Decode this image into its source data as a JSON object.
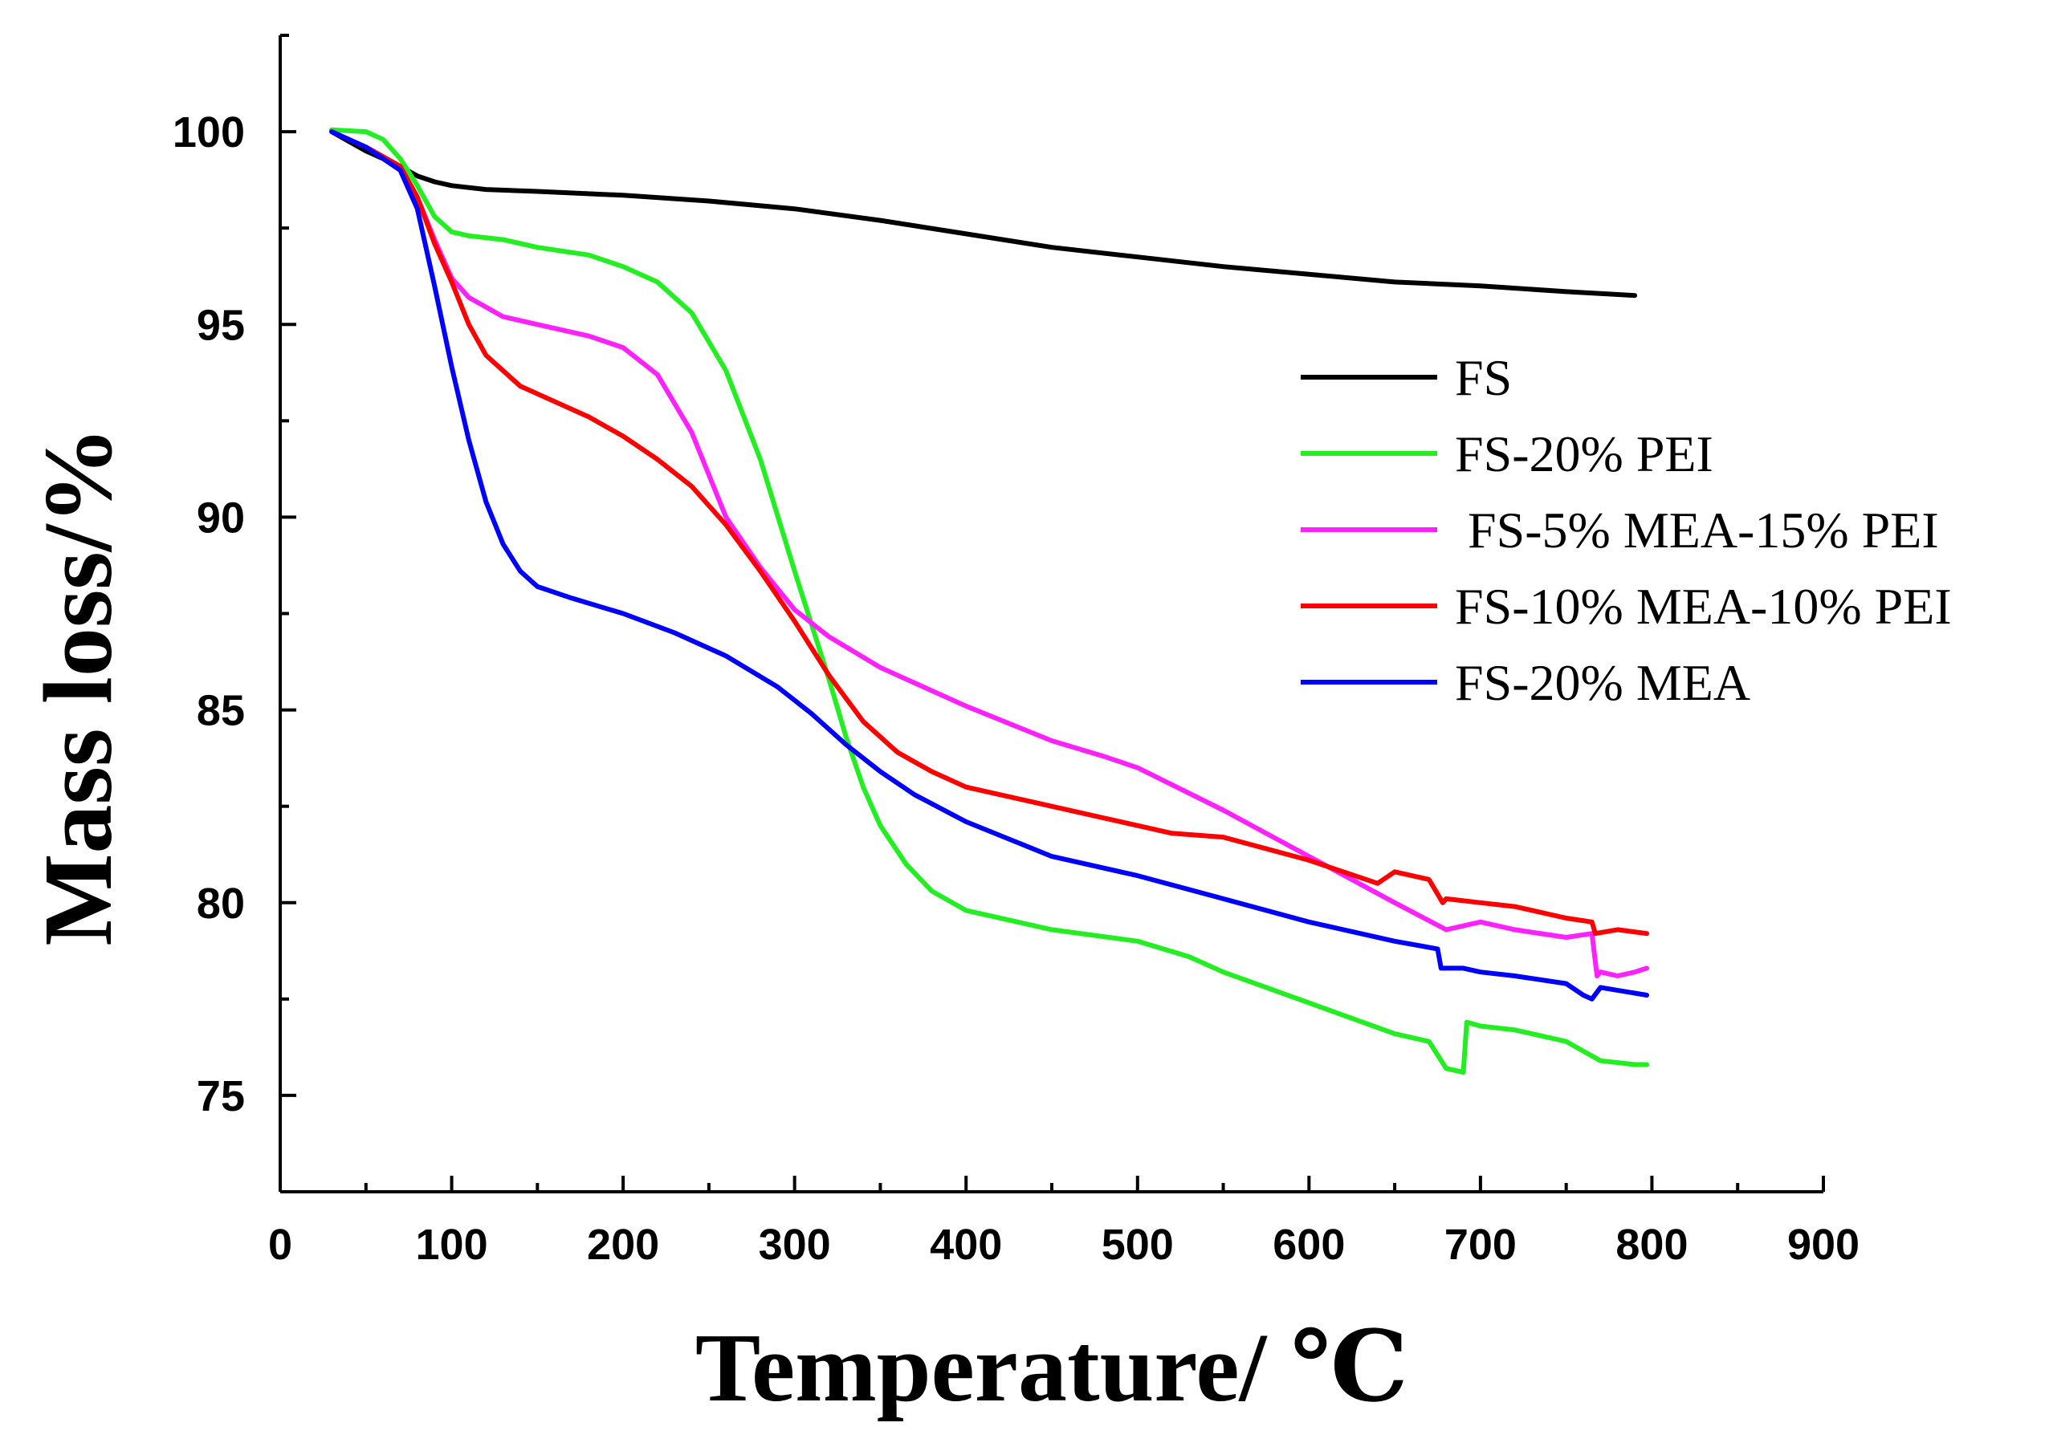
{
  "chart_data": {
    "type": "line",
    "title": "",
    "xlabel": "Temperature/ ℃",
    "ylabel": "Mass loss/%",
    "xlim": [
      0,
      900
    ],
    "ylim": [
      72.5,
      102.5
    ],
    "x_ticks": [
      "0",
      "100",
      "200",
      "300",
      "400",
      "500",
      "600",
      "700",
      "800",
      "900"
    ],
    "y_ticks": [
      "75",
      "80",
      "85",
      "90",
      "95",
      "100"
    ],
    "x_tick_values": [
      0,
      100,
      200,
      300,
      400,
      500,
      600,
      700,
      800,
      900
    ],
    "y_tick_values": [
      75,
      80,
      85,
      90,
      95,
      100
    ],
    "grid": false,
    "legend_position": "right",
    "series": [
      {
        "name": "FS",
        "color": "#000000",
        "x": [
          30,
          50,
          70,
          80,
          90,
          100,
          120,
          150,
          200,
          250,
          300,
          350,
          400,
          450,
          500,
          550,
          600,
          650,
          700,
          750,
          790
        ],
        "y": [
          100.0,
          99.5,
          99.1,
          98.85,
          98.7,
          98.6,
          98.5,
          98.45,
          98.35,
          98.2,
          98.0,
          97.7,
          97.35,
          97.0,
          96.75,
          96.5,
          96.3,
          96.1,
          96.0,
          95.85,
          95.75
        ]
      },
      {
        "name": "FS-20% PEI",
        "color": "#22ee22",
        "x": [
          30,
          50,
          60,
          70,
          80,
          90,
          100,
          110,
          130,
          150,
          180,
          200,
          220,
          240,
          260,
          280,
          300,
          320,
          330,
          340,
          350,
          365,
          380,
          400,
          450,
          500,
          530,
          550,
          600,
          650,
          670,
          680,
          690,
          692,
          700,
          720,
          750,
          770,
          790,
          797
        ],
        "y": [
          100.05,
          100.0,
          99.8,
          99.3,
          98.6,
          97.8,
          97.4,
          97.3,
          97.2,
          97.0,
          96.8,
          96.5,
          96.1,
          95.3,
          93.8,
          91.5,
          88.6,
          85.8,
          84.3,
          83.0,
          82.0,
          81.0,
          80.3,
          79.8,
          79.3,
          79.0,
          78.6,
          78.2,
          77.4,
          76.6,
          76.4,
          75.7,
          75.6,
          76.9,
          76.8,
          76.7,
          76.4,
          75.9,
          75.8,
          75.8
        ]
      },
      {
        "name": " FS-5% MEA-15% PEI",
        "color": "#ff22ff",
        "x": [
          30,
          50,
          70,
          80,
          90,
          100,
          110,
          130,
          150,
          180,
          200,
          220,
          240,
          260,
          280,
          300,
          320,
          350,
          380,
          400,
          450,
          480,
          500,
          550,
          600,
          650,
          680,
          700,
          720,
          750,
          765,
          768,
          770,
          780,
          790,
          797
        ],
        "y": [
          100.0,
          99.6,
          99.1,
          98.3,
          97.2,
          96.2,
          95.7,
          95.2,
          95.0,
          94.7,
          94.4,
          93.7,
          92.2,
          90.0,
          88.7,
          87.6,
          86.9,
          86.1,
          85.5,
          85.1,
          84.2,
          83.8,
          83.5,
          82.4,
          81.2,
          80.0,
          79.3,
          79.5,
          79.3,
          79.1,
          79.2,
          78.1,
          78.2,
          78.1,
          78.2,
          78.3
        ]
      },
      {
        "name": "FS-10% MEA-10% PEI",
        "color": "#ff0000",
        "x": [
          30,
          50,
          70,
          80,
          90,
          100,
          110,
          120,
          140,
          160,
          180,
          200,
          220,
          240,
          260,
          280,
          300,
          320,
          340,
          360,
          380,
          400,
          450,
          500,
          520,
          550,
          600,
          640,
          650,
          670,
          678,
          680,
          700,
          720,
          750,
          765,
          767,
          780,
          797
        ],
        "y": [
          100.0,
          99.6,
          99.1,
          98.3,
          97.1,
          96.1,
          95.0,
          94.2,
          93.4,
          93.0,
          92.6,
          92.1,
          91.5,
          90.8,
          89.8,
          88.6,
          87.3,
          85.9,
          84.7,
          83.9,
          83.4,
          83.0,
          82.5,
          82.0,
          81.8,
          81.7,
          81.1,
          80.5,
          80.8,
          80.6,
          80.0,
          80.1,
          80.0,
          79.9,
          79.6,
          79.5,
          79.2,
          79.3,
          79.2
        ]
      },
      {
        "name": "FS-20% MEA",
        "color": "#0000ff",
        "x": [
          30,
          50,
          70,
          80,
          90,
          100,
          110,
          120,
          130,
          140,
          150,
          170,
          200,
          230,
          260,
          290,
          310,
          330,
          350,
          370,
          400,
          450,
          500,
          550,
          600,
          650,
          675,
          677,
          690,
          700,
          720,
          750,
          760,
          765,
          770,
          797
        ],
        "y": [
          100.0,
          99.6,
          99.0,
          98.0,
          96.0,
          93.9,
          92.0,
          90.4,
          89.3,
          88.6,
          88.2,
          87.9,
          87.5,
          87.0,
          86.4,
          85.6,
          84.9,
          84.1,
          83.4,
          82.8,
          82.1,
          81.2,
          80.7,
          80.1,
          79.5,
          79.0,
          78.8,
          78.3,
          78.3,
          78.2,
          78.1,
          77.9,
          77.6,
          77.5,
          77.8,
          77.6
        ]
      }
    ]
  }
}
